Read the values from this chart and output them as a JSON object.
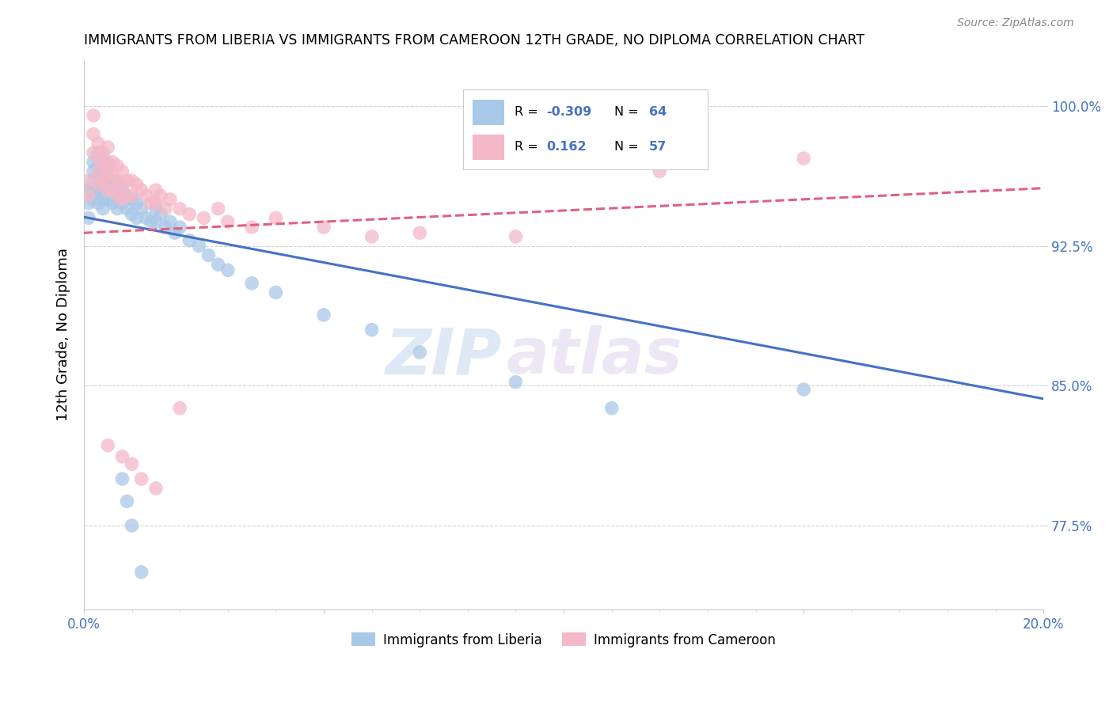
{
  "title": "IMMIGRANTS FROM LIBERIA VS IMMIGRANTS FROM CAMEROON 12TH GRADE, NO DIPLOMA CORRELATION CHART",
  "source": "Source: ZipAtlas.com",
  "ylabel": "12th Grade, No Diploma",
  "xlim": [
    0.0,
    0.2
  ],
  "ylim": [
    0.73,
    1.025
  ],
  "blue_R": "-0.309",
  "blue_N": "64",
  "pink_R": "0.162",
  "pink_N": "57",
  "blue_color": "#a8c8e8",
  "pink_color": "#f4b8c8",
  "blue_line_color": "#4472c4",
  "pink_line_color": "#e06080",
  "watermark_zip": "ZIP",
  "watermark_atlas": "atlas",
  "blue_trend_x0": 0.0,
  "blue_trend_y0": 0.9405,
  "blue_trend_x1": 0.2,
  "blue_trend_y1": 0.843,
  "pink_trend_x0": 0.0,
  "pink_trend_y0": 0.932,
  "pink_trend_x1": 0.2,
  "pink_trend_y1": 0.956,
  "blue_scatter_x": [
    0.001,
    0.001,
    0.001,
    0.002,
    0.002,
    0.002,
    0.002,
    0.002,
    0.003,
    0.003,
    0.003,
    0.003,
    0.003,
    0.004,
    0.004,
    0.004,
    0.004,
    0.004,
    0.004,
    0.005,
    0.005,
    0.005,
    0.005,
    0.006,
    0.006,
    0.006,
    0.007,
    0.007,
    0.007,
    0.008,
    0.008,
    0.009,
    0.009,
    0.01,
    0.01,
    0.011,
    0.011,
    0.012,
    0.013,
    0.014,
    0.015,
    0.015,
    0.016,
    0.017,
    0.018,
    0.019,
    0.02,
    0.022,
    0.024,
    0.026,
    0.028,
    0.03,
    0.035,
    0.04,
    0.05,
    0.06,
    0.07,
    0.09,
    0.11,
    0.15,
    0.008,
    0.009,
    0.01,
    0.012
  ],
  "blue_scatter_y": [
    0.955,
    0.948,
    0.94,
    0.97,
    0.965,
    0.96,
    0.955,
    0.95,
    0.975,
    0.968,
    0.962,
    0.955,
    0.948,
    0.972,
    0.965,
    0.96,
    0.955,
    0.95,
    0.945,
    0.968,
    0.962,
    0.957,
    0.95,
    0.96,
    0.955,
    0.948,
    0.958,
    0.952,
    0.945,
    0.955,
    0.948,
    0.952,
    0.945,
    0.95,
    0.942,
    0.948,
    0.94,
    0.945,
    0.94,
    0.938,
    0.945,
    0.938,
    0.942,
    0.935,
    0.938,
    0.932,
    0.935,
    0.928,
    0.925,
    0.92,
    0.915,
    0.912,
    0.905,
    0.9,
    0.888,
    0.88,
    0.868,
    0.852,
    0.838,
    0.848,
    0.8,
    0.788,
    0.775,
    0.75
  ],
  "pink_scatter_x": [
    0.001,
    0.001,
    0.002,
    0.002,
    0.002,
    0.003,
    0.003,
    0.003,
    0.003,
    0.004,
    0.004,
    0.004,
    0.005,
    0.005,
    0.005,
    0.005,
    0.006,
    0.006,
    0.006,
    0.007,
    0.007,
    0.007,
    0.008,
    0.008,
    0.008,
    0.009,
    0.009,
    0.01,
    0.01,
    0.011,
    0.012,
    0.013,
    0.014,
    0.015,
    0.015,
    0.016,
    0.017,
    0.018,
    0.02,
    0.022,
    0.025,
    0.028,
    0.03,
    0.035,
    0.04,
    0.05,
    0.06,
    0.07,
    0.09,
    0.12,
    0.005,
    0.008,
    0.01,
    0.012,
    0.015,
    0.02,
    0.15
  ],
  "pink_scatter_y": [
    0.96,
    0.952,
    0.995,
    0.985,
    0.975,
    0.98,
    0.972,
    0.965,
    0.958,
    0.975,
    0.968,
    0.96,
    0.978,
    0.97,
    0.963,
    0.955,
    0.97,
    0.963,
    0.955,
    0.968,
    0.96,
    0.952,
    0.965,
    0.958,
    0.95,
    0.96,
    0.952,
    0.96,
    0.952,
    0.958,
    0.955,
    0.952,
    0.948,
    0.955,
    0.948,
    0.952,
    0.945,
    0.95,
    0.945,
    0.942,
    0.94,
    0.945,
    0.938,
    0.935,
    0.94,
    0.935,
    0.93,
    0.932,
    0.93,
    0.965,
    0.818,
    0.812,
    0.808,
    0.8,
    0.795,
    0.838,
    0.972
  ]
}
